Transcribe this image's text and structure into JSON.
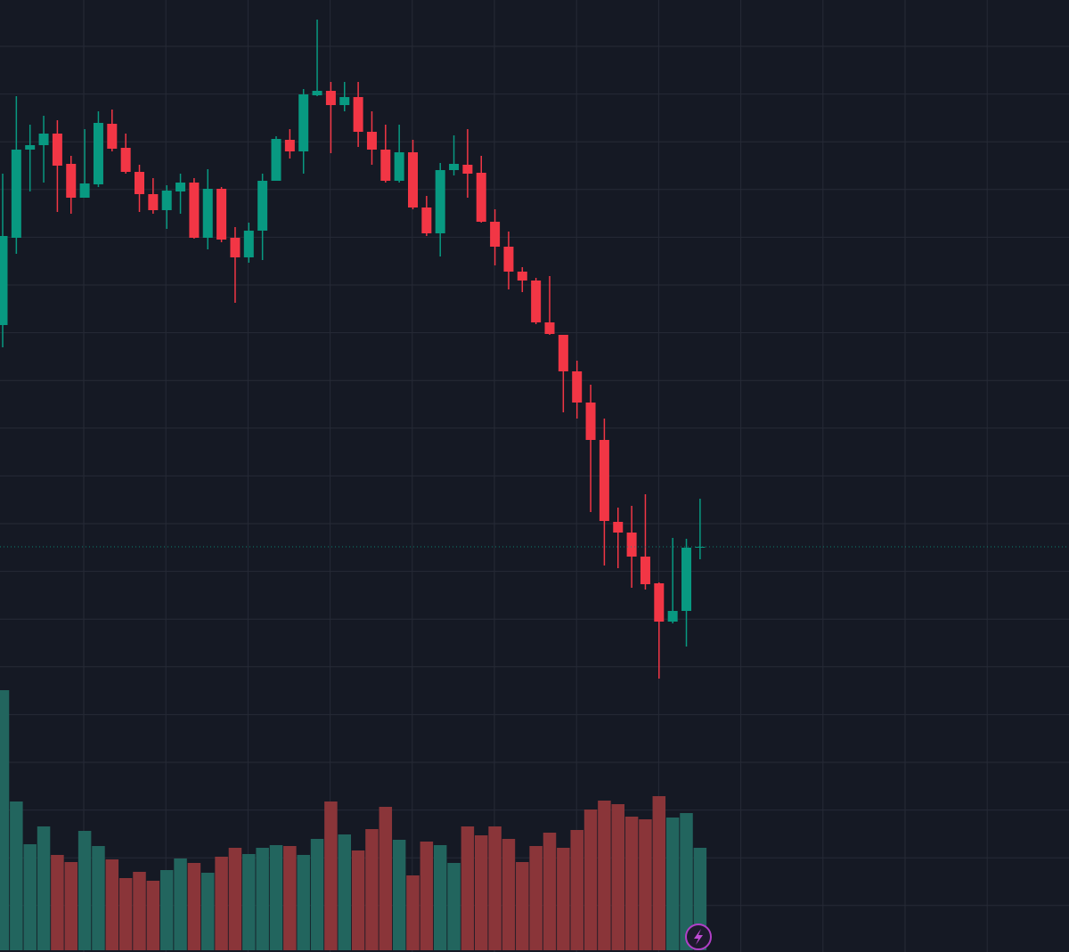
{
  "chart_data": {
    "type": "candlestick",
    "open": [
      704,
      802,
      901,
      906,
      919,
      885,
      847,
      862,
      930,
      903,
      876,
      851,
      833,
      854,
      864,
      802,
      857,
      802,
      780,
      810,
      866,
      912,
      899,
      962,
      967,
      951,
      960,
      921,
      901,
      866,
      898,
      836,
      807,
      878,
      884,
      875,
      820,
      792,
      764,
      754,
      707,
      693,
      652,
      617,
      575,
      483,
      471,
      444,
      414,
      371,
      383,
      454
    ],
    "high": [
      874,
      961,
      929,
      939,
      934,
      894,
      924,
      944,
      946,
      919,
      884,
      869,
      861,
      874,
      869,
      879,
      859,
      814,
      819,
      874,
      916,
      924,
      969,
      1047,
      977,
      977,
      977,
      944,
      929,
      929,
      912,
      849,
      886,
      917,
      924,
      894,
      834,
      809,
      769,
      757,
      759,
      693,
      664,
      637,
      599,
      499,
      501,
      514,
      415,
      465,
      464,
      509
    ],
    "low": [
      679,
      784,
      854,
      864,
      831,
      829,
      847,
      859,
      899,
      874,
      831,
      829,
      812,
      829,
      801,
      789,
      797,
      729,
      774,
      777,
      866,
      891,
      874,
      961,
      897,
      944,
      904,
      884,
      864,
      864,
      834,
      804,
      781,
      872,
      847,
      819,
      771,
      744,
      741,
      705,
      693,
      606,
      599,
      494,
      434,
      431,
      409,
      407,
      307,
      369,
      343,
      441
    ],
    "close": [
      804,
      901,
      906,
      919,
      883,
      847,
      863,
      931,
      902,
      876,
      851,
      833,
      855,
      864,
      802,
      857,
      800,
      780,
      810,
      866,
      913,
      899,
      963,
      967,
      951,
      960,
      921,
      901,
      866,
      898,
      836,
      807,
      878,
      885,
      874,
      820,
      792,
      764,
      754,
      707,
      694,
      652,
      617,
      575,
      484,
      471,
      444,
      413,
      371,
      383,
      454,
      455
    ],
    "volume": [
      292,
      167,
      119,
      139,
      107,
      99,
      134,
      117,
      102,
      81,
      88,
      78,
      90,
      103,
      98,
      87,
      105,
      115,
      108,
      115,
      118,
      117,
      107,
      125,
      167,
      130,
      112,
      136,
      161,
      124,
      84,
      122,
      118,
      98,
      139,
      129,
      139,
      125,
      99,
      117,
      132,
      115,
      135,
      158,
      168,
      164,
      150,
      147,
      173,
      149,
      154,
      115
    ],
    "ylim": [
      0,
      1069
    ],
    "up_color": "#089981",
    "down_color": "#f23645",
    "volume_up_color": "#22655e",
    "volume_down_color": "#8a3539",
    "grid": true
  }
}
